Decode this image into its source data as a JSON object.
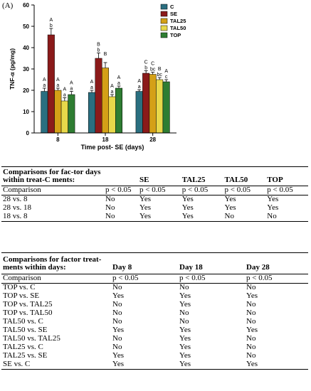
{
  "panel_label": "(A)",
  "colors": {
    "C": "#2a6f80",
    "SE": "#8b1a1a",
    "TAL25": "#d4a017",
    "TAL50": "#e8d84a",
    "TOP": "#2e7d32",
    "axis": "#000000"
  },
  "chart_data": {
    "type": "bar",
    "xlabel": "Time post- SE (days)",
    "ylabel": "TNF-α (pg/mg)",
    "ylim": [
      0,
      60
    ],
    "yticks": [
      0,
      10,
      20,
      30,
      40,
      50,
      60
    ],
    "categories": [
      "8",
      "18",
      "28"
    ],
    "legend_position": "top-right",
    "series": [
      {
        "name": "C",
        "values": [
          19.5,
          19,
          19.5
        ],
        "errors": [
          1.5,
          1,
          0.8
        ],
        "letters_upper": [
          "A",
          "A",
          "A"
        ],
        "letters_lower": [
          "a",
          "a",
          "a"
        ]
      },
      {
        "name": "SE",
        "values": [
          46,
          35,
          28
        ],
        "errors": [
          3,
          2.5,
          1.2
        ],
        "letters_upper": [
          "A",
          "B",
          "C"
        ],
        "letters_lower": [
          "b",
          "b",
          "b"
        ]
      },
      {
        "name": "TAL25",
        "values": [
          20,
          30.5,
          27.5
        ],
        "errors": [
          1,
          2.5,
          1
        ],
        "letters_upper": [
          "A",
          "B",
          "C"
        ],
        "letters_lower": [
          "a",
          "",
          "bc"
        ]
      },
      {
        "name": "TAL50",
        "values": [
          15,
          17,
          25
        ],
        "errors": [
          1.5,
          1,
          1
        ],
        "letters_upper": [
          "A",
          "A",
          "B"
        ],
        "letters_lower": [
          "a",
          "a",
          "bc"
        ]
      },
      {
        "name": "TOP",
        "values": [
          18,
          21,
          24
        ],
        "errors": [
          1.5,
          1,
          1
        ],
        "letters_upper": [
          "A",
          "A",
          "A"
        ],
        "letters_lower": [
          "a",
          "a",
          "c"
        ]
      }
    ]
  },
  "table1": {
    "header": [
      "Comparisons for fac-tor days within treat-C ments:",
      "",
      "SE",
      "TAL25",
      "TAL50",
      "TOP"
    ],
    "comparison_row": [
      "Comparison",
      "p < 0.05",
      "p < 0.05",
      "p < 0.05",
      "p < 0.05",
      "p < 0.05"
    ],
    "rows": [
      [
        "28 vs. 8",
        "No",
        "Yes",
        "Yes",
        "Yes",
        "Yes"
      ],
      [
        "28 vs. 18",
        "No",
        "Yes",
        "Yes",
        "Yes",
        "Yes"
      ],
      [
        "18 vs. 8",
        "No",
        "Yes",
        "Yes",
        "No",
        "No"
      ]
    ]
  },
  "table2": {
    "header": [
      "Comparisons for factor treat-ments within days:",
      "Day 8",
      "Day 18",
      "Day 28"
    ],
    "comparison_row": [
      "Comparison",
      "p < 0.05",
      "p < 0.05",
      "p < 0.05"
    ],
    "rows": [
      [
        "TOP vs. C",
        "No",
        "No",
        "No"
      ],
      [
        "TOP vs. SE",
        "Yes",
        "Yes",
        "Yes"
      ],
      [
        "TOP vs. TAL25",
        "No",
        "Yes",
        "No"
      ],
      [
        "TOP vs. TAL50",
        "No",
        "No",
        "No"
      ],
      [
        "TAL50 vs. C",
        "No",
        "No",
        "No"
      ],
      [
        "TAL50 vs. SE",
        "Yes",
        "Yes",
        "Yes"
      ],
      [
        "TAL50 vs. TAL25",
        "No",
        "Yes",
        "No"
      ],
      [
        "TAL25 vs. C",
        "No",
        "Yes",
        "No"
      ],
      [
        "TAL25 vs. SE",
        "Yes",
        "Yes",
        "No"
      ],
      [
        "SE vs. C",
        "Yes",
        "Yes",
        "Yes"
      ]
    ]
  }
}
